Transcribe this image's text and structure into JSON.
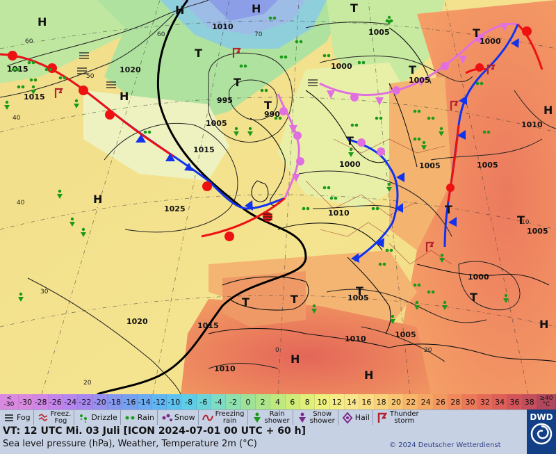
{
  "map": {
    "pressure_labels": [
      "1015",
      "1010",
      "1005",
      "1000",
      "1020",
      "995",
      "990",
      "1005",
      "1015",
      "1025",
      "1010",
      "1000",
      "1005",
      "1010",
      "1005",
      "1005",
      "1000",
      "1005",
      "1020",
      "1015",
      "1010",
      "1010",
      "1005",
      "1005",
      "1000",
      "1015"
    ],
    "pressure_centers": [
      "H",
      "H",
      "H",
      "H",
      "H",
      "H",
      "H",
      "H",
      "H",
      "T",
      "T",
      "T",
      "T",
      "T",
      "T",
      "T",
      "T",
      "T",
      "T",
      "T",
      "T",
      "T"
    ],
    "temp_grid_labels": [
      "60",
      "60",
      "70",
      "50",
      "40",
      "40",
      "30",
      "20",
      "20",
      "10",
      "0"
    ]
  },
  "scale": {
    "first_top": "<",
    "first_bottom": "-30",
    "values": [
      "-30",
      "-28",
      "-26",
      "-24",
      "-22",
      "-20",
      "-18",
      "-16",
      "-14",
      "-12",
      "-10",
      "-8",
      "-6",
      "-4",
      "-2",
      "0",
      "2",
      "4",
      "6",
      "8",
      "10",
      "12",
      "14",
      "16",
      "18",
      "20",
      "22",
      "24",
      "26",
      "28",
      "30",
      "32",
      "34",
      "36",
      "38"
    ],
    "colors": [
      "#d98ae0",
      "#cf86e6",
      "#c385eb",
      "#b685f0",
      "#a787f0",
      "#9690ee",
      "#8698ee",
      "#76a0f0",
      "#6aabf2",
      "#60b6f2",
      "#5cc2f0",
      "#5ecde8",
      "#6cd4d8",
      "#7edcc4",
      "#8ee0ae",
      "#9ee299",
      "#aee58a",
      "#bee97f",
      "#cfec79",
      "#dfef79",
      "#eef17e",
      "#f6ec86",
      "#f9e58c",
      "#fbdc82",
      "#fbd27a",
      "#f9c572",
      "#f7b66a",
      "#f5a764",
      "#f39860",
      "#f0885c",
      "#ec785a",
      "#e66a58",
      "#de5e58",
      "#d2545a",
      "#c54e5c"
    ],
    "last_top": "≥40",
    "last_bottom": "°C",
    "last_color": "#b1475c"
  },
  "legend": {
    "fog": "Fog",
    "freez_fog": "Freez.\nFog",
    "drizzle": "Drizzle",
    "rain": "Rain",
    "snow": "Snow",
    "freezing_rain": "Freezing\nrain",
    "rain_shower": "Rain\nshower",
    "snow_shower": "Snow\nshower",
    "hail": "Hail",
    "thunderstorm": "Thunder\nstorm"
  },
  "info": {
    "vt": "VT: 12 UTC Mi.  03 Juli [ICON 2024-07-01  00 UTC + 60 h]",
    "subtitle": "Sea level pressure (hPa), Weather, Temperature 2m (°C)",
    "copyright": "© 2024 Deutscher Wetterdienst",
    "logo": "DWD"
  },
  "colors": {
    "warm_front": "#ee1111",
    "cold_front": "#1133ee",
    "occluded_front": "#e070e0",
    "symbol_green": "#1a9a1a",
    "thunder_red": "#b5232d"
  }
}
